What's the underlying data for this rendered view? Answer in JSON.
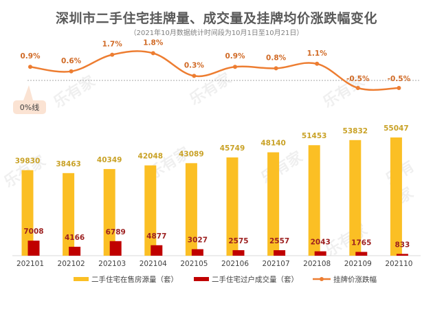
{
  "chart_data": {
    "type": "bar",
    "title": "深圳市二手住宅挂牌量、成交量及挂牌均价涨跌幅变化",
    "subtitle": "（2021年10月数据统计时间段为10月1日至10月21日）",
    "categories": [
      "202101",
      "202102",
      "202103",
      "202104",
      "202105",
      "202106",
      "202107",
      "202108",
      "202109",
      "202110"
    ],
    "series": [
      {
        "name": "二手住宅在售房源量（套）",
        "kind": "bar",
        "color": "#FBBF24",
        "values": [
          39830,
          38463,
          40349,
          42048,
          43089,
          45749,
          48140,
          51453,
          53832,
          55047
        ]
      },
      {
        "name": "二手住宅过户成交量（套）",
        "kind": "bar",
        "color": "#C00000",
        "values": [
          7008,
          4166,
          6789,
          4877,
          3027,
          2575,
          2557,
          2043,
          1765,
          833
        ]
      },
      {
        "name": "挂牌价涨跌幅",
        "kind": "line",
        "color": "#ED7D31",
        "values": [
          0.9,
          0.6,
          1.7,
          1.8,
          0.3,
          0.9,
          0.8,
          1.1,
          -0.5,
          -0.5
        ],
        "labels": [
          "0.9%",
          "0.6%",
          "1.7%",
          "1.8%",
          "0.3%",
          "0.9%",
          "0.8%",
          "1.1%",
          "-0.5%",
          "-0.5%"
        ]
      }
    ],
    "zero_line_label": "0%线",
    "legend_position": "bottom",
    "grid": false,
    "watermark": "乐有家"
  }
}
